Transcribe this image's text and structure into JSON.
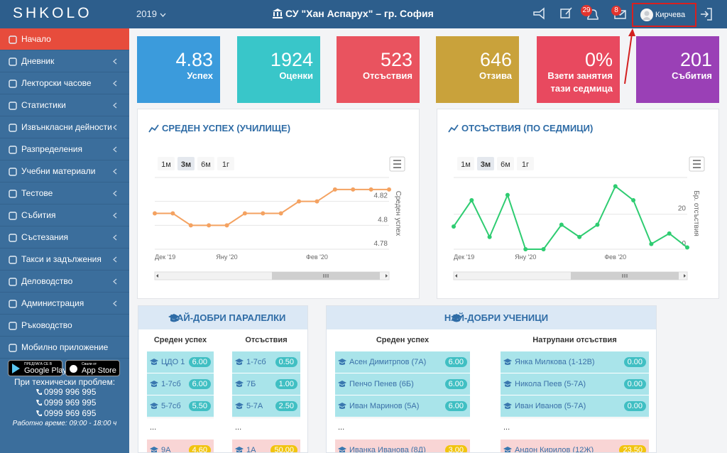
{
  "header": {
    "logo": "SHKOLO",
    "year": "2019",
    "school": "СУ \"Хан Аспарух\" – гр. София",
    "notifications": "29",
    "messages": "8",
    "user": "Кирчева"
  },
  "sidebar": {
    "items": [
      {
        "label": "Начало",
        "active": true
      },
      {
        "label": "Дневник",
        "submenu": true
      },
      {
        "label": "Лекторски часове",
        "submenu": true
      },
      {
        "label": "Статистики",
        "submenu": true
      },
      {
        "label": "Извънкласни дейности",
        "submenu": true
      },
      {
        "label": "Разпределения",
        "submenu": true
      },
      {
        "label": "Учебни материали",
        "submenu": true
      },
      {
        "label": "Тестове",
        "submenu": true
      },
      {
        "label": "Събития",
        "submenu": true
      },
      {
        "label": "Състезания",
        "submenu": true
      },
      {
        "label": "Такси и задължения",
        "submenu": true
      },
      {
        "label": "Деловодство",
        "submenu": true
      },
      {
        "label": "Администрация",
        "submenu": true
      },
      {
        "label": "Ръководство"
      },
      {
        "label": "Мобилно приложение"
      }
    ],
    "apps": [
      {
        "small": "ПРЕДЛАГА СЕ В",
        "name": "Google Play"
      },
      {
        "small": "Свали от",
        "name": "App Store"
      }
    ],
    "support": {
      "title": "При технически проблем:",
      "phones": [
        "0999 996 995",
        "0999 969 995",
        "0999 969 695"
      ],
      "hours": "Работно време: 09:00 - 18:00 ч"
    }
  },
  "stats": [
    {
      "value": "4.83",
      "label": "Успех",
      "color": "#3b9bdc"
    },
    {
      "value": "1924",
      "label": "Оценки",
      "color": "#39c6c9"
    },
    {
      "value": "523",
      "label": "Отсъствия",
      "color": "#e9535f"
    },
    {
      "value": "646",
      "label": "Отзива",
      "color": "#c9a23b"
    },
    {
      "value": "0%",
      "label": "Взети занятия тази седмица",
      "color": "#e8495f"
    },
    {
      "value": "201",
      "label": "Събития",
      "color": "#9a40b6"
    }
  ],
  "chart_data": [
    {
      "type": "line",
      "title": "СРЕДЕН УСПЕХ (УЧИЛИЩЕ)",
      "range_buttons": [
        {
          "label": "1м"
        },
        {
          "label": "3м",
          "selected": true
        },
        {
          "label": "6м"
        },
        {
          "label": "1г"
        }
      ],
      "categories": [
        "Дек '19",
        null,
        null,
        null,
        "Яну '20",
        null,
        null,
        null,
        null,
        "Фев '20",
        null,
        null,
        null,
        null
      ],
      "values": [
        4.81,
        4.81,
        4.8,
        4.8,
        4.8,
        4.81,
        4.81,
        4.81,
        4.82,
        4.82,
        4.83,
        4.83,
        4.83,
        4.83
      ],
      "color": "#f4a261",
      "ylabel": "Среден успех",
      "ylim": [
        4.78,
        4.84
      ],
      "yticks": [
        4.78,
        4.8,
        4.82
      ],
      "grid": true
    },
    {
      "type": "line",
      "title": "ОТСЪСТВИЯ (ПО СЕДМИЦИ)",
      "range_buttons": [
        {
          "label": "1м"
        },
        {
          "label": "3м",
          "selected": true
        },
        {
          "label": "6м"
        },
        {
          "label": "1г"
        }
      ],
      "categories": [
        "Дек '19",
        null,
        null,
        null,
        "Яну '20",
        null,
        null,
        null,
        null,
        "Фев '20",
        null,
        null,
        null,
        null
      ],
      "values": [
        13,
        28,
        7,
        31,
        0,
        0,
        14,
        7,
        14,
        36,
        28,
        3,
        9,
        1
      ],
      "color": "#2ecc71",
      "ylabel": "Бр. отсъствия",
      "ylim": [
        0,
        41
      ],
      "yticks": [
        0,
        20
      ],
      "grid": true
    }
  ],
  "tables": [
    {
      "title": "НАЙ-ДОБРИ ПАРАЛЕЛКИ",
      "columns": [
        {
          "header": "Среден успех",
          "top": [
            {
              "name": "ЦДО 1",
              "value": "6.00"
            },
            {
              "name": "1-7сб",
              "value": "6.00"
            },
            {
              "name": "5-7сб",
              "value": "5.50"
            }
          ],
          "gap": "...",
          "bottom": {
            "name": "9А",
            "value": "4.60"
          }
        },
        {
          "header": "Отсъствия",
          "top": [
            {
              "name": "1-7сб",
              "value": "0.50"
            },
            {
              "name": "7Б",
              "value": "1.00"
            },
            {
              "name": "5-7А",
              "value": "2.50"
            }
          ],
          "gap": "...",
          "bottom": {
            "name": "1А",
            "value": "50.00"
          }
        }
      ]
    },
    {
      "title": "НАЙ-ДОБРИ УЧЕНИЦИ",
      "columns": [
        {
          "header": "Среден успех",
          "top": [
            {
              "name": "Асен Димитрпов (7А)",
              "value": "6.00"
            },
            {
              "name": "Пенчо Пенев (6Б)",
              "value": "6.00"
            },
            {
              "name": "Иван Маринов (5А)",
              "value": "6.00"
            }
          ],
          "gap": "...",
          "bottom": {
            "name": "Иванка Иванова (8Д)",
            "value": "3.00"
          }
        },
        {
          "header": "Натрупани отсъствия",
          "top": [
            {
              "name": "Янка Милкова (1-12В)",
              "value": "0.00"
            },
            {
              "name": "Никола Пеев (5-7А)",
              "value": "0.00"
            },
            {
              "name": "Иван Иванов (5-7А)",
              "value": "0.00"
            }
          ],
          "gap": "...",
          "bottom": {
            "name": "Андон Кирилов (12Ж)",
            "value": "23.50"
          }
        }
      ]
    }
  ]
}
